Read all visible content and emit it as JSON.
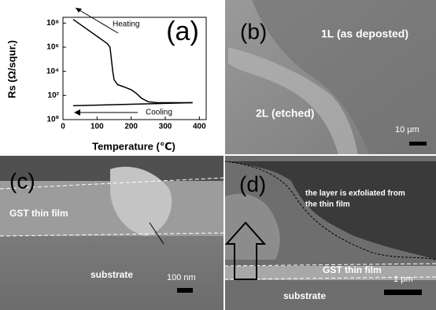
{
  "chart_data": {
    "type": "line",
    "panel_label": "(a)",
    "x_label": "Temperature (℃)",
    "y_label": "Rs (Ω/squr.)",
    "log_y": true,
    "xlim": [
      0,
      420
    ],
    "xticks": [
      0,
      100,
      200,
      300,
      400
    ],
    "ylim": [
      1,
      300000000
    ],
    "yticks": [
      {
        "value": 1,
        "label": "10⁰"
      },
      {
        "value": 100,
        "label": "10²"
      },
      {
        "value": 10000,
        "label": "10⁴"
      },
      {
        "value": 1000000,
        "label": "10⁶"
      },
      {
        "value": 100000000,
        "label": "10⁸"
      }
    ],
    "series": [
      {
        "color": "#000000",
        "x": [
          30,
          60,
          100,
          130,
          138,
          142,
          146,
          150,
          160,
          180,
          200,
          215,
          230,
          250,
          280,
          330,
          380
        ],
        "values": [
          200000000,
          50000000,
          8000000,
          2000000,
          1000000,
          100000,
          10000,
          2000,
          800,
          500,
          300,
          150,
          60,
          30,
          25,
          25,
          25
        ]
      },
      {
        "color": "#000000",
        "x": [
          30,
          380
        ],
        "values": [
          14,
          25
        ]
      }
    ],
    "annotations": [
      "Heating",
      "Cooling"
    ]
  },
  "panels": {
    "b": {
      "label": "(b)",
      "texts": [
        "1L (as deposted)",
        "2L (etched)"
      ],
      "scale": "10 μm"
    },
    "c": {
      "label": "(c)",
      "texts": [
        "GST thin film",
        "substrate"
      ],
      "scale": "100 nm"
    },
    "d": {
      "label": "(d)",
      "texts": [
        "the layer is exfoliated from",
        "the thin film",
        "GST thin film",
        "substrate"
      ],
      "scale": "1 μm"
    }
  }
}
